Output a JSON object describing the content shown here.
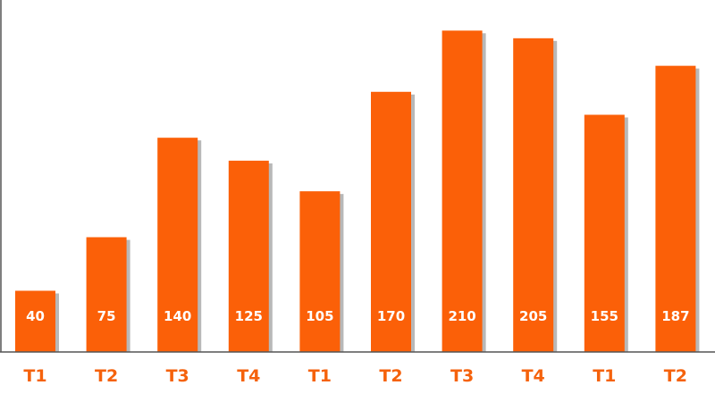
{
  "chart_data": {
    "type": "bar",
    "categories": [
      "T1",
      "T2",
      "T3",
      "T4",
      "T1",
      "T2",
      "T3",
      "T4",
      "T1",
      "T2"
    ],
    "values": [
      40,
      75,
      140,
      125,
      105,
      170,
      210,
      205,
      155,
      187
    ],
    "title": "",
    "xlabel": "",
    "ylabel": "",
    "ylim": [
      0,
      230
    ],
    "grid": false,
    "legend": "none",
    "data_labels": "inside-bottom",
    "colors": {
      "bar": "#fb6008",
      "tick_label": "#f5620c",
      "value_label": "#ffffff",
      "axis": "#555555"
    }
  }
}
